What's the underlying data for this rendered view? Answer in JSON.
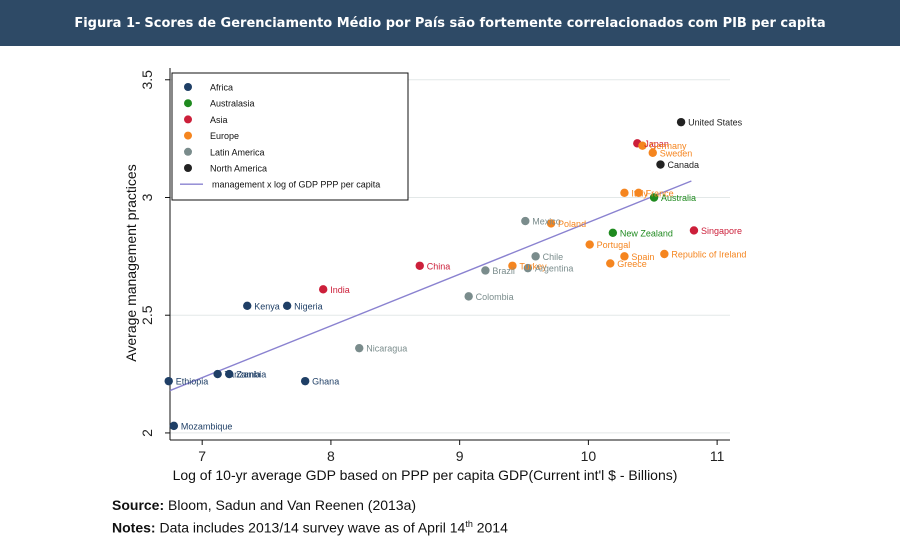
{
  "header": {
    "prefix": "Figura 1-",
    "title": "Scores de Gerenciamento Médio por País são fortemente correlacionados com PIB per capita"
  },
  "footer": {
    "source_label": "Source:",
    "source_text": "Bloom, Sadun and Van Reenen (2013a)",
    "notes_label": "Notes:",
    "notes_text": "Data includes 2013/14 survey wave as of April 14",
    "notes_sup": "th",
    "notes_year": " 2014"
  },
  "chart_data": {
    "type": "scatter",
    "xlabel": "Log of 10-yr average GDP based on PPP per capita GDP(Current int'l $ - Billions)",
    "ylabel": "Average management practices",
    "xlim": [
      6.75,
      11.1
    ],
    "ylim": [
      1.97,
      3.55
    ],
    "xticks": [
      "7",
      "8",
      "9",
      "10",
      "11"
    ],
    "yticks": [
      "2",
      "2.5",
      "3",
      "3.5"
    ],
    "grid": true,
    "legend_position": "top-left",
    "region_colors": {
      "Africa": "#1f3f66",
      "Australasia": "#1f8a1f",
      "Asia": "#cc1f3a",
      "Europe": "#f5851f",
      "Latin America": "#7a8c8c",
      "North America": "#222222"
    },
    "legend": [
      {
        "name": "Africa",
        "kind": "marker"
      },
      {
        "name": "Australasia",
        "kind": "marker"
      },
      {
        "name": "Asia",
        "kind": "marker"
      },
      {
        "name": "Europe",
        "kind": "marker"
      },
      {
        "name": "Latin America",
        "kind": "marker"
      },
      {
        "name": "North America",
        "kind": "marker"
      },
      {
        "name": "management x log of GDP PPP per capita",
        "kind": "line",
        "color": "#8a82d0"
      }
    ],
    "fit_line": {
      "x": [
        6.75,
        10.8
      ],
      "y": [
        2.18,
        3.07
      ]
    },
    "points": [
      {
        "label": "United States",
        "region": "North America",
        "x": 10.72,
        "y": 3.32
      },
      {
        "label": "Japan",
        "region": "Asia",
        "x": 10.38,
        "y": 3.23
      },
      {
        "label": "Germany",
        "region": "Europe",
        "x": 10.42,
        "y": 3.22
      },
      {
        "label": "Sweden",
        "region": "Europe",
        "x": 10.5,
        "y": 3.19
      },
      {
        "label": "Canada",
        "region": "North America",
        "x": 10.56,
        "y": 3.14
      },
      {
        "label": "Italy",
        "region": "Europe",
        "x": 10.28,
        "y": 3.02
      },
      {
        "label": "France",
        "region": "Europe",
        "x": 10.39,
        "y": 3.02
      },
      {
        "label": "Australia",
        "region": "Australasia",
        "x": 10.51,
        "y": 3.0
      },
      {
        "label": "Mexico",
        "region": "Latin America",
        "x": 9.51,
        "y": 2.9
      },
      {
        "label": "Poland",
        "region": "Europe",
        "x": 9.71,
        "y": 2.89
      },
      {
        "label": "New Zealand",
        "region": "Australasia",
        "x": 10.19,
        "y": 2.85
      },
      {
        "label": "Singapore",
        "region": "Asia",
        "x": 10.82,
        "y": 2.86
      },
      {
        "label": "Portugal",
        "region": "Europe",
        "x": 10.01,
        "y": 2.8
      },
      {
        "label": "Republic of Ireland",
        "region": "Europe",
        "x": 10.59,
        "y": 2.76
      },
      {
        "label": "Chile",
        "region": "Latin America",
        "x": 9.59,
        "y": 2.75
      },
      {
        "label": "Spain",
        "region": "Europe",
        "x": 10.28,
        "y": 2.75
      },
      {
        "label": "Greece",
        "region": "Europe",
        "x": 10.17,
        "y": 2.72
      },
      {
        "label": "China",
        "region": "Asia",
        "x": 8.69,
        "y": 2.71
      },
      {
        "label": "Turkey",
        "region": "Europe",
        "x": 9.41,
        "y": 2.71
      },
      {
        "label": "Argentina",
        "region": "Latin America",
        "x": 9.53,
        "y": 2.7
      },
      {
        "label": "Brazil",
        "region": "Latin America",
        "x": 9.2,
        "y": 2.69
      },
      {
        "label": "India",
        "region": "Asia",
        "x": 7.94,
        "y": 2.61
      },
      {
        "label": "Colombia",
        "region": "Latin America",
        "x": 9.07,
        "y": 2.58
      },
      {
        "label": "Kenya",
        "region": "Africa",
        "x": 7.35,
        "y": 2.54
      },
      {
        "label": "Nigeria",
        "region": "Africa",
        "x": 7.66,
        "y": 2.54
      },
      {
        "label": "Nicaragua",
        "region": "Latin America",
        "x": 8.22,
        "y": 2.36
      },
      {
        "label": "Tanzania",
        "region": "Africa",
        "x": 7.12,
        "y": 2.25
      },
      {
        "label": "Zambia",
        "region": "Africa",
        "x": 7.21,
        "y": 2.25
      },
      {
        "label": "Ethiopia",
        "region": "Africa",
        "x": 6.74,
        "y": 2.22
      },
      {
        "label": "Ghana",
        "region": "Africa",
        "x": 7.8,
        "y": 2.22
      },
      {
        "label": "Mozambique",
        "region": "Africa",
        "x": 6.78,
        "y": 2.03
      }
    ]
  }
}
